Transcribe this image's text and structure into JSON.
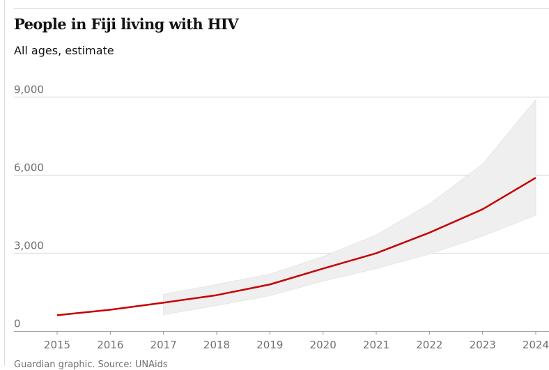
{
  "chart_data": {
    "type": "line",
    "title": "People in Fiji living with HIV",
    "subtitle": "All ages, estimate",
    "x": [
      2015,
      2016,
      2017,
      2018,
      2019,
      2020,
      2021,
      2022,
      2023,
      2024
    ],
    "x_tick_labels": [
      "2015",
      "2016",
      "2017",
      "2018",
      "2019",
      "2020",
      "2021",
      "2022",
      "2023",
      "2024"
    ],
    "series": [
      {
        "values": [
          620,
          830,
          1100,
          1390,
          1800,
          2410,
          3000,
          3790,
          4690,
          5900
        ],
        "color": "#c70000"
      }
    ],
    "uncertainty_band": {
      "x": [
        2017,
        2018,
        2019,
        2020,
        2021,
        2022,
        2023,
        2024
      ],
      "lower": [
        640,
        990,
        1370,
        1930,
        2410,
        2970,
        3660,
        4460
      ],
      "upper": [
        1420,
        1800,
        2200,
        2870,
        3700,
        4890,
        6420,
        8900
      ],
      "color": "#efefef"
    },
    "ylim": [
      0,
      9000
    ],
    "y_ticks": [
      0,
      3000,
      6000,
      9000
    ],
    "y_tick_labels": [
      "0",
      "3,000",
      "6,000",
      "9,000"
    ],
    "grid": true,
    "xlabel": "",
    "ylabel": ""
  },
  "footer": "Guardian graphic. Source: UNAids"
}
